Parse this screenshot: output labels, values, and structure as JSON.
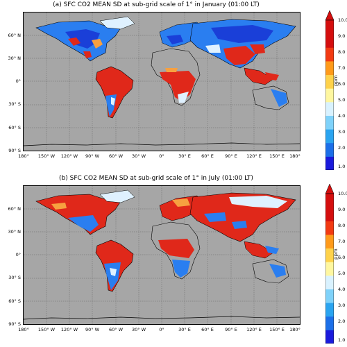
{
  "panels": [
    {
      "title": "(a) SFC CO2 MEAN SD at sub-grid scale of 1° in January (01:00 LT)",
      "lat_labels": [
        "60° N",
        "30° N",
        "0°",
        "30° S",
        "60° S",
        "90° S"
      ],
      "lon_labels": [
        "180°",
        "150° W",
        "120° W",
        "90° W",
        "60° W",
        "30° W",
        "0°",
        "30° E",
        "60° E",
        "90° E",
        "120° E",
        "150° E",
        "180°"
      ]
    },
    {
      "title": "(b) SFC CO2 MEAN SD at sub-grid scale of 1° in July (01:00 LT)",
      "lat_labels": [
        "60° N",
        "30° N",
        "0°",
        "30° S",
        "60° S",
        "90° S"
      ],
      "lon_labels": [
        "180°",
        "150° W",
        "120° W",
        "90° W",
        "60° W",
        "30° W",
        "0°",
        "30° E",
        "60° E",
        "90° E",
        "120° E",
        "150° E",
        "180°"
      ]
    }
  ],
  "colorbar": {
    "unit": "ppm",
    "ticks": [
      "10.0",
      "9.0",
      "8.0",
      "7.0",
      "6.0",
      "5.0",
      "4.0",
      "3.0",
      "2.0",
      "1.0"
    ],
    "colors": [
      "#1a1adc",
      "#1c6fe8",
      "#2aa4f0",
      "#7fd2fa",
      "#d9f2ff",
      "#fff7a0",
      "#ffd24a",
      "#ff9a1a",
      "#f23a12",
      "#d40e0e",
      "#d40e0e"
    ]
  },
  "colors": {
    "ocean": "#a6a6a6",
    "high": "#e0281a",
    "mid": "#f7a040",
    "low": "#2a7ef0",
    "very_low": "#1a3fd8",
    "pale": "#dff1ff"
  }
}
